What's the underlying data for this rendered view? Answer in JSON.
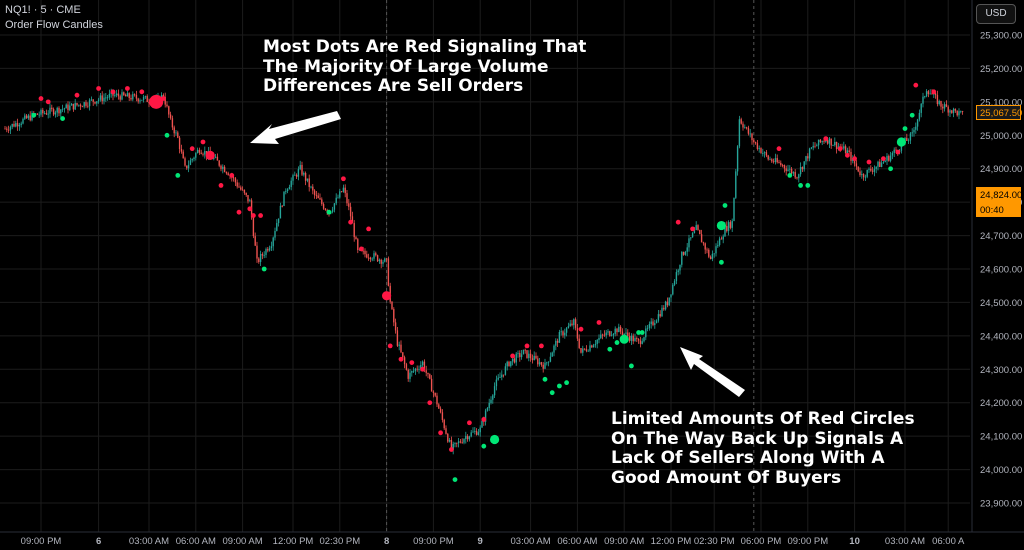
{
  "header": {
    "symbol": "NQ1! · 5 · CME",
    "indicator": "Order Flow Candles"
  },
  "currency_button": "USD",
  "annotations": [
    [
      "Most Dots Are Red Signaling That",
      "The Majority Of Large Volume",
      "Differences Are Sell Orders"
    ],
    [
      "Limited Amounts Of Red Circles",
      "On The Way Back Up Signals A",
      "Lack Of Sellers Along With A",
      "Good Amount Of Buyers"
    ]
  ],
  "price_tags": [
    {
      "text": "25,067.50",
      "price": 25067.5,
      "bg": "#1a1a1a",
      "fg": "#ff9800",
      "border": "#ff9800"
    },
    {
      "text": "24,824.00",
      "sub": "00:40",
      "price": 24824,
      "bg": "#ff9800",
      "fg": "#000000",
      "border": "#ff9800"
    }
  ],
  "colors": {
    "up": "#26a69a",
    "down": "#ef5350",
    "buy_dot": "#00e676",
    "sell_dot": "#ff1744",
    "grid": "#1c1c1c",
    "axis_text": "#b2b5be",
    "background": "#000000"
  },
  "chart_data": {
    "type": "candlestick",
    "title": "NQ1! · 5 · CME",
    "subtitle": "Order Flow Candles",
    "ylim": [
      23850,
      25350
    ],
    "y_ticks": [
      25300,
      25200,
      25100,
      25000,
      24900,
      24800,
      24700,
      24600,
      24500,
      24400,
      24300,
      24200,
      24100,
      24000,
      23900
    ],
    "y_tick_labels": [
      "25,300.00",
      "25,200.00",
      "25,100.00",
      "25,000.00",
      "24,900.00",
      "24,800.00",
      "24,700.00",
      "24,600.00",
      "24,500.00",
      "24,400.00",
      "24,300.00",
      "24,200.00",
      "24,100.00",
      "24,000.00",
      "23,900.00"
    ],
    "x_ticks": [
      "09:00 PM",
      "6",
      "03:00 AM",
      "06:00 AM",
      "09:00 AM",
      "12:00 PM",
      "02:30 PM",
      "8",
      "09:00 PM",
      "9",
      "03:00 AM",
      "06:00 AM",
      "09:00 AM",
      "12:00 PM",
      "02:30 PM",
      "06:00 PM",
      "09:00 PM",
      "10",
      "03:00 AM",
      "06:00 A"
    ],
    "x_tick_index": [
      10,
      26,
      40,
      53,
      66,
      80,
      93,
      106,
      119,
      132,
      146,
      159,
      172,
      185,
      197,
      210,
      223,
      236,
      250,
      262
    ],
    "session_breaks": [
      106,
      208
    ],
    "price_path": [
      [
        0,
        25020
      ],
      [
        8,
        25060
      ],
      [
        20,
        25090
      ],
      [
        30,
        25120
      ],
      [
        38,
        25110
      ],
      [
        42,
        25100
      ],
      [
        44,
        25120
      ],
      [
        46,
        25040
      ],
      [
        48,
        24990
      ],
      [
        50,
        24900
      ],
      [
        54,
        24960
      ],
      [
        58,
        24930
      ],
      [
        62,
        24890
      ],
      [
        66,
        24830
      ],
      [
        68,
        24800
      ],
      [
        70,
        24620
      ],
      [
        74,
        24680
      ],
      [
        78,
        24840
      ],
      [
        82,
        24900
      ],
      [
        86,
        24820
      ],
      [
        90,
        24770
      ],
      [
        94,
        24840
      ],
      [
        96,
        24760
      ],
      [
        98,
        24650
      ],
      [
        102,
        24640
      ],
      [
        106,
        24620
      ],
      [
        107,
        24500
      ],
      [
        109,
        24380
      ],
      [
        112,
        24280
      ],
      [
        116,
        24320
      ],
      [
        120,
        24200
      ],
      [
        124,
        24060
      ],
      [
        128,
        24100
      ],
      [
        132,
        24120
      ],
      [
        136,
        24250
      ],
      [
        140,
        24320
      ],
      [
        144,
        24350
      ],
      [
        150,
        24310
      ],
      [
        154,
        24400
      ],
      [
        158,
        24440
      ],
      [
        160,
        24350
      ],
      [
        166,
        24400
      ],
      [
        170,
        24420
      ],
      [
        176,
        24380
      ],
      [
        180,
        24440
      ],
      [
        184,
        24500
      ],
      [
        188,
        24640
      ],
      [
        192,
        24720
      ],
      [
        196,
        24630
      ],
      [
        200,
        24720
      ],
      [
        202,
        24740
      ],
      [
        204,
        25050
      ],
      [
        208,
        24980
      ],
      [
        212,
        24930
      ],
      [
        216,
        24910
      ],
      [
        220,
        24880
      ],
      [
        224,
        24960
      ],
      [
        228,
        24990
      ],
      [
        234,
        24950
      ],
      [
        238,
        24880
      ],
      [
        244,
        24920
      ],
      [
        248,
        24960
      ],
      [
        252,
        25000
      ],
      [
        256,
        25140
      ],
      [
        260,
        25090
      ],
      [
        266,
        25060
      ]
    ],
    "dots": [
      {
        "i": 8,
        "p": 25060,
        "side": "buy",
        "size": "s"
      },
      {
        "i": 10,
        "p": 25110,
        "side": "sell",
        "size": "s"
      },
      {
        "i": 12,
        "p": 25100,
        "side": "sell",
        "size": "s"
      },
      {
        "i": 16,
        "p": 25050,
        "side": "buy",
        "size": "s"
      },
      {
        "i": 20,
        "p": 25120,
        "side": "sell",
        "size": "s"
      },
      {
        "i": 26,
        "p": 25140,
        "side": "sell",
        "size": "s"
      },
      {
        "i": 30,
        "p": 25130,
        "side": "sell",
        "size": "s"
      },
      {
        "i": 34,
        "p": 25140,
        "side": "sell",
        "size": "s"
      },
      {
        "i": 38,
        "p": 25130,
        "side": "sell",
        "size": "s"
      },
      {
        "i": 42,
        "p": 25100,
        "side": "sell",
        "size": "l"
      },
      {
        "i": 44,
        "p": 25110,
        "side": "sell",
        "size": "s"
      },
      {
        "i": 45,
        "p": 25000,
        "side": "buy",
        "size": "s"
      },
      {
        "i": 48,
        "p": 24880,
        "side": "buy",
        "size": "s"
      },
      {
        "i": 52,
        "p": 24960,
        "side": "sell",
        "size": "s"
      },
      {
        "i": 55,
        "p": 24980,
        "side": "sell",
        "size": "s"
      },
      {
        "i": 57,
        "p": 24940,
        "side": "sell",
        "size": "m"
      },
      {
        "i": 60,
        "p": 24850,
        "side": "sell",
        "size": "s"
      },
      {
        "i": 63,
        "p": 24880,
        "side": "sell",
        "size": "s"
      },
      {
        "i": 65,
        "p": 24770,
        "side": "sell",
        "size": "s"
      },
      {
        "i": 68,
        "p": 24780,
        "side": "sell",
        "size": "s"
      },
      {
        "i": 69,
        "p": 24760,
        "side": "sell",
        "size": "s"
      },
      {
        "i": 71,
        "p": 24760,
        "side": "sell",
        "size": "s"
      },
      {
        "i": 72,
        "p": 24600,
        "side": "buy",
        "size": "s"
      },
      {
        "i": 90,
        "p": 24770,
        "side": "buy",
        "size": "s"
      },
      {
        "i": 94,
        "p": 24870,
        "side": "sell",
        "size": "s"
      },
      {
        "i": 96,
        "p": 24740,
        "side": "sell",
        "size": "s"
      },
      {
        "i": 99,
        "p": 24660,
        "side": "sell",
        "size": "s"
      },
      {
        "i": 101,
        "p": 24720,
        "side": "sell",
        "size": "s"
      },
      {
        "i": 106,
        "p": 24520,
        "side": "sell",
        "size": "m"
      },
      {
        "i": 107,
        "p": 24370,
        "side": "sell",
        "size": "s"
      },
      {
        "i": 110,
        "p": 24330,
        "side": "sell",
        "size": "s"
      },
      {
        "i": 113,
        "p": 24320,
        "side": "sell",
        "size": "s"
      },
      {
        "i": 116,
        "p": 24300,
        "side": "sell",
        "size": "s"
      },
      {
        "i": 118,
        "p": 24200,
        "side": "sell",
        "size": "s"
      },
      {
        "i": 121,
        "p": 24110,
        "side": "sell",
        "size": "s"
      },
      {
        "i": 124,
        "p": 24060,
        "side": "sell",
        "size": "s"
      },
      {
        "i": 125,
        "p": 23970,
        "side": "buy",
        "size": "s"
      },
      {
        "i": 129,
        "p": 24140,
        "side": "sell",
        "size": "s"
      },
      {
        "i": 133,
        "p": 24150,
        "side": "sell",
        "size": "s"
      },
      {
        "i": 133,
        "p": 24070,
        "side": "buy",
        "size": "s"
      },
      {
        "i": 136,
        "p": 24090,
        "side": "buy",
        "size": "m"
      },
      {
        "i": 141,
        "p": 24340,
        "side": "sell",
        "size": "s"
      },
      {
        "i": 145,
        "p": 24370,
        "side": "sell",
        "size": "s"
      },
      {
        "i": 149,
        "p": 24370,
        "side": "sell",
        "size": "s"
      },
      {
        "i": 150,
        "p": 24270,
        "side": "buy",
        "size": "s"
      },
      {
        "i": 152,
        "p": 24230,
        "side": "buy",
        "size": "s"
      },
      {
        "i": 154,
        "p": 24250,
        "side": "buy",
        "size": "s"
      },
      {
        "i": 156,
        "p": 24260,
        "side": "buy",
        "size": "s"
      },
      {
        "i": 160,
        "p": 24420,
        "side": "sell",
        "size": "s"
      },
      {
        "i": 165,
        "p": 24440,
        "side": "sell",
        "size": "s"
      },
      {
        "i": 168,
        "p": 24360,
        "side": "buy",
        "size": "s"
      },
      {
        "i": 170,
        "p": 24380,
        "side": "buy",
        "size": "s"
      },
      {
        "i": 172,
        "p": 24390,
        "side": "buy",
        "size": "m"
      },
      {
        "i": 174,
        "p": 24310,
        "side": "buy",
        "size": "s"
      },
      {
        "i": 176,
        "p": 24410,
        "side": "buy",
        "size": "s"
      },
      {
        "i": 177,
        "p": 24410,
        "side": "buy",
        "size": "s"
      },
      {
        "i": 187,
        "p": 24740,
        "side": "sell",
        "size": "s"
      },
      {
        "i": 191,
        "p": 24720,
        "side": "sell",
        "size": "s"
      },
      {
        "i": 199,
        "p": 24730,
        "side": "buy",
        "size": "m"
      },
      {
        "i": 199,
        "p": 24620,
        "side": "buy",
        "size": "s"
      },
      {
        "i": 200,
        "p": 24790,
        "side": "buy",
        "size": "s"
      },
      {
        "i": 215,
        "p": 24960,
        "side": "sell",
        "size": "s"
      },
      {
        "i": 218,
        "p": 24880,
        "side": "buy",
        "size": "s"
      },
      {
        "i": 221,
        "p": 24850,
        "side": "buy",
        "size": "s"
      },
      {
        "i": 223,
        "p": 24850,
        "side": "buy",
        "size": "s"
      },
      {
        "i": 228,
        "p": 24990,
        "side": "sell",
        "size": "s"
      },
      {
        "i": 232,
        "p": 24960,
        "side": "sell",
        "size": "s"
      },
      {
        "i": 234,
        "p": 24940,
        "side": "sell",
        "size": "s"
      },
      {
        "i": 236,
        "p": 24930,
        "side": "sell",
        "size": "s"
      },
      {
        "i": 240,
        "p": 24920,
        "side": "sell",
        "size": "s"
      },
      {
        "i": 244,
        "p": 24930,
        "side": "sell",
        "size": "s"
      },
      {
        "i": 246,
        "p": 24900,
        "side": "buy",
        "size": "s"
      },
      {
        "i": 248,
        "p": 24950,
        "side": "sell",
        "size": "s"
      },
      {
        "i": 249,
        "p": 24980,
        "side": "buy",
        "size": "m"
      },
      {
        "i": 250,
        "p": 25020,
        "side": "buy",
        "size": "s"
      },
      {
        "i": 252,
        "p": 25060,
        "side": "buy",
        "size": "s"
      },
      {
        "i": 253,
        "p": 25150,
        "side": "sell",
        "size": "s"
      },
      {
        "i": 258,
        "p": 25130,
        "side": "sell",
        "size": "s"
      }
    ]
  }
}
